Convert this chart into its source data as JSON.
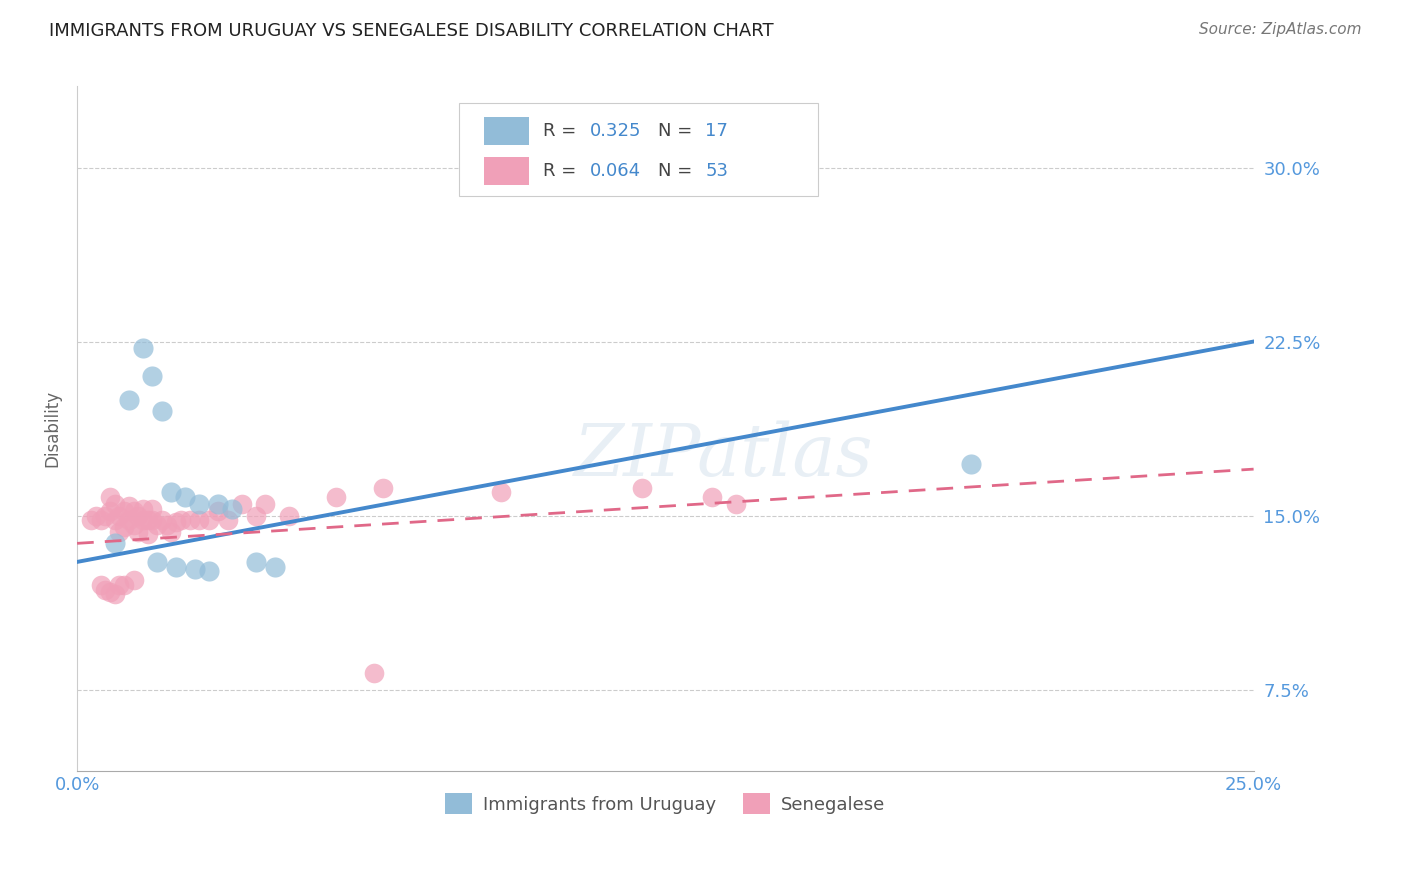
{
  "title": "IMMIGRANTS FROM URUGUAY VS SENEGALESE DISABILITY CORRELATION CHART",
  "source": "Source: ZipAtlas.com",
  "ylabel_label": "Disability",
  "xlim": [
    0.0,
    0.25
  ],
  "ylim": [
    0.04,
    0.335
  ],
  "y_ticks": [
    0.075,
    0.15,
    0.225,
    0.3
  ],
  "y_tick_labels": [
    "7.5%",
    "15.0%",
    "22.5%",
    "30.0%"
  ],
  "x_ticks": [
    0.0,
    0.05,
    0.1,
    0.15,
    0.2,
    0.25
  ],
  "x_tick_labels": [
    "0.0%",
    "",
    "",
    "",
    "",
    "25.0%"
  ],
  "blue_R": "0.325",
  "blue_N": "17",
  "pink_R": "0.064",
  "pink_N": "53",
  "blue_scatter_x": [
    0.008,
    0.011,
    0.014,
    0.016,
    0.018,
    0.02,
    0.023,
    0.026,
    0.03,
    0.033,
    0.038,
    0.042,
    0.19,
    0.017,
    0.021,
    0.025,
    0.028
  ],
  "blue_scatter_y": [
    0.138,
    0.2,
    0.222,
    0.21,
    0.195,
    0.16,
    0.158,
    0.155,
    0.155,
    0.153,
    0.13,
    0.128,
    0.172,
    0.13,
    0.128,
    0.127,
    0.126
  ],
  "pink_scatter_x": [
    0.003,
    0.004,
    0.005,
    0.006,
    0.007,
    0.007,
    0.008,
    0.008,
    0.009,
    0.009,
    0.01,
    0.01,
    0.011,
    0.011,
    0.012,
    0.012,
    0.013,
    0.013,
    0.014,
    0.014,
    0.015,
    0.015,
    0.016,
    0.016,
    0.017,
    0.018,
    0.019,
    0.02,
    0.021,
    0.022,
    0.024,
    0.026,
    0.028,
    0.03,
    0.032,
    0.035,
    0.038,
    0.04,
    0.045,
    0.055,
    0.065,
    0.09,
    0.12,
    0.135,
    0.14,
    0.005,
    0.006,
    0.007,
    0.008,
    0.009,
    0.01,
    0.012,
    0.063
  ],
  "pink_scatter_y": [
    0.148,
    0.15,
    0.148,
    0.15,
    0.152,
    0.158,
    0.148,
    0.155,
    0.143,
    0.15,
    0.145,
    0.152,
    0.148,
    0.154,
    0.146,
    0.152,
    0.143,
    0.15,
    0.148,
    0.153,
    0.148,
    0.142,
    0.148,
    0.153,
    0.146,
    0.148,
    0.146,
    0.143,
    0.147,
    0.148,
    0.148,
    0.148,
    0.148,
    0.152,
    0.148,
    0.155,
    0.15,
    0.155,
    0.15,
    0.158,
    0.162,
    0.16,
    0.162,
    0.158,
    0.155,
    0.12,
    0.118,
    0.117,
    0.116,
    0.12,
    0.12,
    0.122,
    0.082
  ],
  "watermark": "ZIPatlas",
  "blue_color": "#92bcd8",
  "pink_color": "#f0a0b8",
  "blue_line_color": "#4488cc",
  "pink_line_color": "#e06888",
  "grid_color": "#cccccc",
  "background_color": "#ffffff",
  "tick_label_color": "#5599dd",
  "title_color": "#222222",
  "blue_line_start_y": 0.13,
  "blue_line_end_y": 0.225,
  "pink_line_start_y": 0.138,
  "pink_line_end_y": 0.17
}
